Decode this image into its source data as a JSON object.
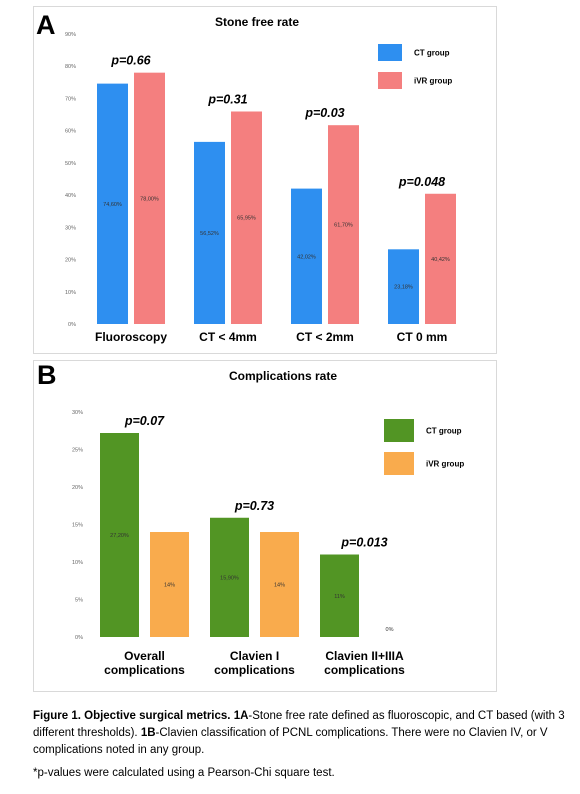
{
  "panels": {
    "a_letter": "A",
    "b_letter": "B"
  },
  "chart_data": [
    {
      "type": "bar",
      "title": "Stone free rate",
      "categories": [
        "Fluoroscopy",
        "CT < 4mm",
        "CT < 2mm",
        "CT 0 mm"
      ],
      "series": [
        {
          "name": "CT group",
          "color": "#2e8ff0",
          "values": [
            74.6,
            56.52,
            42.02,
            23.18
          ],
          "labels": [
            "74,60%",
            "56,52%",
            "42,02%",
            "23,18%"
          ]
        },
        {
          "name": "iVR group",
          "color": "#f47f7f",
          "values": [
            78.0,
            65.95,
            61.7,
            40.42
          ],
          "labels": [
            "78,00%",
            "65,95%",
            "61,70%",
            "40,42%"
          ]
        }
      ],
      "pvalues": [
        "p=0.66",
        "p=0.31",
        "p=0.03",
        "p=0.048"
      ],
      "yticks": [
        "0%",
        "10%",
        "20%",
        "30%",
        "40%",
        "50%",
        "60%",
        "70%",
        "80%",
        "90%"
      ],
      "ylim": [
        0,
        90
      ],
      "grid": false,
      "legend": "top-right"
    },
    {
      "type": "bar",
      "title": "Complications rate",
      "categories": [
        [
          "Overall",
          "complications"
        ],
        [
          "Clavien I",
          "complications"
        ],
        [
          "Clavien II+IIIA",
          "complications"
        ]
      ],
      "series": [
        {
          "name": "CT group",
          "color": "#529524",
          "values": [
            27.2,
            15.9,
            11.0
          ],
          "labels": [
            "27,20%",
            "15,90%",
            "11%"
          ]
        },
        {
          "name": "iVR group",
          "color": "#f9ab4d",
          "values": [
            14.0,
            14.0,
            0.0
          ],
          "labels": [
            "14%",
            "14%",
            "0%"
          ]
        }
      ],
      "pvalues": [
        "p=0.07",
        "p=0.73",
        "p=0.013"
      ],
      "yticks": [
        "0%",
        "5%",
        "10%",
        "15%",
        "20%",
        "25%",
        "30%"
      ],
      "ylim": [
        0,
        30
      ],
      "grid": false,
      "legend": "top-right"
    }
  ],
  "caption": {
    "bold_lead": "Figure 1. Objective surgical metrics. ",
    "bold_1a": "1A",
    "text_1a": "-Stone free rate defined as fluoroscopic, and CT based (with 3 different thresholds). ",
    "bold_1b": "1B",
    "text_1b": "-Clavien classification of PCNL complications. There were no Clavien IV, or V complications noted in any group."
  },
  "footnote": "*p-values were calculated using a Pearson-Chi square test."
}
